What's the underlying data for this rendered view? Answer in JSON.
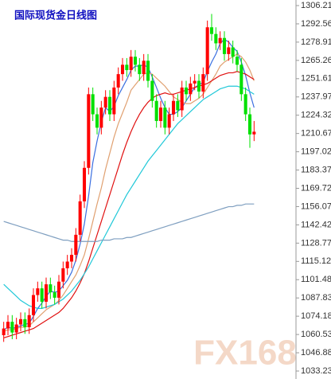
{
  "chart_data": {
    "type": "candlestick",
    "title": "国际现货金日线图",
    "watermark": "FX168",
    "up_color": "#ff0000",
    "down_color": "#00e000",
    "ylim": [
      1033.23,
      1306.21
    ],
    "yticks": [
      1306.21,
      1292.56,
      1278.91,
      1265.26,
      1251.61,
      1237.97,
      1224.32,
      1210.67,
      1197.02,
      1183.37,
      1169.72,
      1156.07,
      1142.42,
      1128.77,
      1115.12,
      1101.48,
      1087.83,
      1074.18,
      1060.53,
      1046.88,
      1033.23
    ],
    "open": [
      1060,
      1065,
      1070,
      1062,
      1068,
      1072,
      1066,
      1075,
      1090,
      1095,
      1085,
      1098,
      1092,
      1088,
      1100,
      1110,
      1115,
      1120,
      1135,
      1160,
      1185,
      1240,
      1225,
      1215,
      1230,
      1238,
      1225,
      1245,
      1255,
      1262,
      1258,
      1268,
      1262,
      1255,
      1265,
      1250,
      1235,
      1220,
      1230,
      1215,
      1225,
      1235,
      1228,
      1245,
      1240,
      1248,
      1250,
      1242,
      1255,
      1290,
      1285,
      1278,
      1282,
      1270,
      1275,
      1268,
      1262,
      1240,
      1225,
      1210
    ],
    "close": [
      1065,
      1070,
      1062,
      1068,
      1072,
      1066,
      1075,
      1090,
      1095,
      1085,
      1098,
      1092,
      1088,
      1100,
      1110,
      1115,
      1120,
      1135,
      1160,
      1185,
      1240,
      1225,
      1215,
      1230,
      1238,
      1225,
      1245,
      1255,
      1262,
      1258,
      1268,
      1262,
      1255,
      1265,
      1250,
      1235,
      1220,
      1230,
      1215,
      1225,
      1235,
      1228,
      1245,
      1240,
      1248,
      1250,
      1242,
      1255,
      1290,
      1285,
      1278,
      1282,
      1270,
      1275,
      1268,
      1262,
      1240,
      1225,
      1210,
      1212
    ],
    "high": [
      1070,
      1075,
      1075,
      1073,
      1077,
      1077,
      1080,
      1095,
      1100,
      1100,
      1103,
      1103,
      1097,
      1105,
      1115,
      1120,
      1125,
      1140,
      1165,
      1190,
      1245,
      1245,
      1230,
      1235,
      1243,
      1243,
      1250,
      1260,
      1267,
      1267,
      1273,
      1273,
      1267,
      1270,
      1270,
      1255,
      1240,
      1235,
      1235,
      1230,
      1240,
      1240,
      1250,
      1250,
      1253,
      1255,
      1255,
      1260,
      1295,
      1300,
      1290,
      1287,
      1287,
      1280,
      1280,
      1273,
      1267,
      1245,
      1230,
      1220
    ],
    "low": [
      1055,
      1060,
      1057,
      1057,
      1063,
      1061,
      1061,
      1070,
      1085,
      1080,
      1080,
      1087,
      1083,
      1083,
      1095,
      1105,
      1110,
      1115,
      1130,
      1155,
      1180,
      1220,
      1210,
      1210,
      1225,
      1220,
      1220,
      1240,
      1250,
      1253,
      1253,
      1257,
      1250,
      1250,
      1245,
      1230,
      1215,
      1215,
      1210,
      1210,
      1220,
      1223,
      1223,
      1235,
      1235,
      1243,
      1237,
      1237,
      1250,
      1280,
      1273,
      1273,
      1265,
      1265,
      1263,
      1257,
      1235,
      1220,
      1200,
      1205
    ],
    "series": [
      {
        "color": "#3b6fe0",
        "values": [
          1064,
          1066,
          1065,
          1066,
          1067,
          1068,
          1069,
          1074,
          1080,
          1084,
          1089,
          1093,
          1092,
          1093,
          1097,
          1101,
          1107,
          1116,
          1128,
          1143,
          1164,
          1189,
          1205,
          1219,
          1230,
          1227,
          1231,
          1239,
          1245,
          1251,
          1258,
          1261,
          1261,
          1262,
          1260,
          1253,
          1245,
          1237,
          1230,
          1225,
          1225,
          1227,
          1230,
          1235,
          1240,
          1245,
          1247,
          1249,
          1257,
          1264,
          1270,
          1278,
          1281,
          1279,
          1275,
          1272,
          1264,
          1254,
          1241,
          1230
        ]
      },
      {
        "color": "#e0a070",
        "values": [
          1063,
          1064,
          1064,
          1065,
          1066,
          1066,
          1067,
          1070,
          1073,
          1076,
          1079,
          1081,
          1083,
          1086,
          1090,
          1095,
          1100,
          1105,
          1112,
          1120,
          1132,
          1145,
          1158,
          1170,
          1184,
          1196,
          1208,
          1218,
          1226,
          1234,
          1243,
          1247,
          1251,
          1255,
          1256,
          1255,
          1252,
          1249,
          1246,
          1242,
          1238,
          1236,
          1234,
          1233,
          1233,
          1235,
          1237,
          1240,
          1245,
          1250,
          1255,
          1261,
          1264,
          1266,
          1268,
          1270,
          1268,
          1264,
          1258,
          1250
        ]
      },
      {
        "color": "#e01010",
        "values": [
          1058,
          1059,
          1060,
          1061,
          1062,
          1063,
          1064,
          1065,
          1067,
          1069,
          1071,
          1073,
          1075,
          1077,
          1080,
          1084,
          1088,
          1093,
          1099,
          1106,
          1115,
          1125,
          1135,
          1145,
          1155,
          1165,
          1175,
          1185,
          1195,
          1204,
          1212,
          1219,
          1225,
          1230,
          1234,
          1237,
          1239,
          1240,
          1241,
          1240,
          1240,
          1241,
          1242,
          1243,
          1244,
          1245,
          1246,
          1247,
          1248,
          1250,
          1252,
          1254,
          1255,
          1256,
          1256,
          1257,
          1256,
          1255,
          1253,
          1251
        ]
      },
      {
        "color": "#20c8d8",
        "values": [
          1098,
          1095,
          1092,
          1089,
          1086,
          1084,
          1082,
          1081,
          1080,
          1080,
          1081,
          1082,
          1083,
          1085,
          1087,
          1090,
          1093,
          1097,
          1101,
          1106,
          1111,
          1117,
          1123,
          1129,
          1135,
          1141,
          1147,
          1153,
          1159,
          1165,
          1170,
          1175,
          1180,
          1185,
          1190,
          1194,
          1198,
          1202,
          1206,
          1210,
          1214,
          1218,
          1221,
          1224,
          1227,
          1230,
          1233,
          1236,
          1238,
          1240,
          1242,
          1244,
          1245,
          1246,
          1246,
          1246,
          1245,
          1244,
          1242,
          1240
        ]
      },
      {
        "color": "#7f9fc0",
        "values": [
          1145,
          1144,
          1143,
          1142,
          1141,
          1140,
          1139,
          1138,
          1137,
          1136,
          1135,
          1134,
          1133,
          1132,
          1131,
          1131,
          1130,
          1130,
          1130,
          1130,
          1130,
          1130,
          1130,
          1131,
          1131,
          1131,
          1132,
          1132,
          1132,
          1133,
          1133,
          1134,
          1135,
          1136,
          1137,
          1138,
          1139,
          1140,
          1141,
          1142,
          1143,
          1144,
          1145,
          1146,
          1147,
          1148,
          1149,
          1150,
          1151,
          1152,
          1153,
          1154,
          1155,
          1156,
          1156,
          1157,
          1157,
          1158,
          1158,
          1158
        ]
      }
    ]
  }
}
